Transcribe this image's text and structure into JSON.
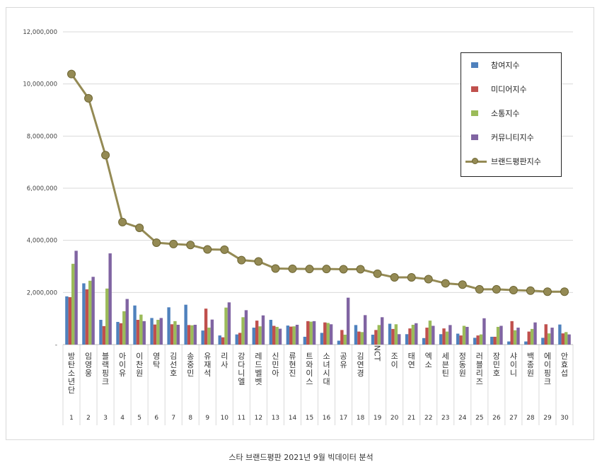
{
  "caption": "스타 브랜드평판 2021년 9월 빅데이터 분석",
  "chart_data": {
    "type": "bar",
    "ylim": [
      0,
      12000000
    ],
    "yticks": [
      "-",
      "2,000,000",
      "4,000,000",
      "6,000,000",
      "8,000,000",
      "10,000,000",
      "12,000,000"
    ],
    "grid": true,
    "legend_position": "top-right",
    "categories": [
      "방탄소년단",
      "임영웅",
      "블랙핑크",
      "아이유",
      "이찬원",
      "영탁",
      "김선호",
      "송중민",
      "유재석",
      "리사",
      "강다니엘",
      "레드벨벳",
      "신민아",
      "류현진",
      "트와이스",
      "소녀시대",
      "공유",
      "김연경",
      "NCT",
      "조이",
      "태연",
      "엑소",
      "세븐틴",
      "정동원",
      "러블리즈",
      "장민호",
      "샤이니",
      "백종원",
      "에이핑크",
      "안효섭"
    ],
    "ranks": [
      "1",
      "2",
      "3",
      "4",
      "5",
      "6",
      "7",
      "8",
      "9",
      "10",
      "11",
      "12",
      "13",
      "14",
      "15",
      "16",
      "17",
      "18",
      "19",
      "20",
      "21",
      "22",
      "23",
      "24",
      "25",
      "26",
      "27",
      "28",
      "29",
      "30"
    ],
    "series": [
      {
        "name": "참여지수",
        "color": "#4f81bd",
        "values": [
          1850000,
          2350000,
          950000,
          870000,
          1500000,
          1020000,
          1430000,
          1530000,
          540000,
          350000,
          390000,
          650000,
          950000,
          730000,
          300000,
          450000,
          150000,
          750000,
          380000,
          800000,
          400000,
          250000,
          400000,
          420000,
          260000,
          300000,
          120000,
          120000,
          260000,
          770000
        ]
      },
      {
        "name": "미디어지수",
        "color": "#c0504d",
        "values": [
          1820000,
          2120000,
          710000,
          820000,
          950000,
          770000,
          780000,
          750000,
          1380000,
          280000,
          450000,
          920000,
          720000,
          690000,
          900000,
          850000,
          560000,
          500000,
          560000,
          600000,
          620000,
          650000,
          620000,
          350000,
          350000,
          300000,
          900000,
          500000,
          780000,
          430000
        ]
      },
      {
        "name": "소통지수",
        "color": "#9bbb59",
        "values": [
          3100000,
          2450000,
          2150000,
          1280000,
          1150000,
          950000,
          900000,
          740000,
          650000,
          1420000,
          1050000,
          700000,
          680000,
          700000,
          880000,
          830000,
          380000,
          480000,
          750000,
          780000,
          760000,
          920000,
          500000,
          720000,
          390000,
          680000,
          550000,
          600000,
          430000,
          480000
        ]
      },
      {
        "name": "커뮤니티지수",
        "color": "#8064a2",
        "values": [
          3600000,
          2600000,
          3500000,
          1750000,
          900000,
          1020000,
          760000,
          760000,
          960000,
          1620000,
          1320000,
          1120000,
          610000,
          760000,
          900000,
          780000,
          1800000,
          1130000,
          1050000,
          400000,
          820000,
          720000,
          750000,
          680000,
          1010000,
          720000,
          650000,
          850000,
          650000,
          390000
        ]
      },
      {
        "name": "브랜드평판지수",
        "color": "#948a54",
        "type": "line",
        "values": [
          10380000,
          9450000,
          7270000,
          4700000,
          4480000,
          3910000,
          3860000,
          3820000,
          3650000,
          3640000,
          3240000,
          3190000,
          2920000,
          2910000,
          2900000,
          2900000,
          2890000,
          2890000,
          2720000,
          2580000,
          2580000,
          2510000,
          2350000,
          2300000,
          2120000,
          2120000,
          2090000,
          2070000,
          2030000,
          2030000
        ]
      }
    ]
  }
}
